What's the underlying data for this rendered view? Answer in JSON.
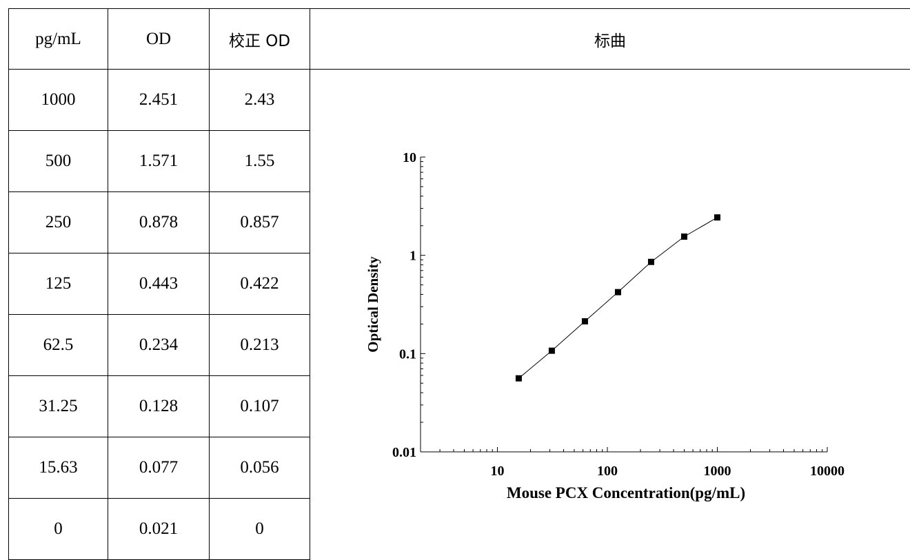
{
  "table": {
    "headers": [
      "pg/mL",
      "OD",
      "校正 OD",
      "标曲"
    ],
    "rows": [
      [
        "1000",
        "2.451",
        "2.43"
      ],
      [
        "500",
        "1.571",
        "1.55"
      ],
      [
        "250",
        "0.878",
        "0.857"
      ],
      [
        "125",
        "0.443",
        "0.422"
      ],
      [
        "62.5",
        "0.234",
        "0.213"
      ],
      [
        "31.25",
        "0.128",
        "0.107"
      ],
      [
        "15.63",
        "0.077",
        "0.056"
      ],
      [
        "0",
        "0.021",
        "0"
      ]
    ]
  },
  "chart_data": {
    "type": "line",
    "xlabel": "Mouse PCX Concentration(pg/mL)",
    "ylabel": "Optical Density",
    "x_scale": "log",
    "y_scale": "log",
    "xlim": [
      2,
      10000
    ],
    "ylim": [
      0.01,
      10
    ],
    "x_ticks": [
      "10",
      "100",
      "1000",
      "10000"
    ],
    "y_ticks": [
      "0.01",
      "0.1",
      "1",
      "10"
    ],
    "grid": false,
    "marker": "square",
    "series": [
      {
        "x": [
          15.63,
          31.25,
          62.5,
          125,
          250,
          500,
          1000
        ],
        "y": [
          0.056,
          0.107,
          0.213,
          0.422,
          0.857,
          1.55,
          2.43
        ]
      }
    ]
  }
}
